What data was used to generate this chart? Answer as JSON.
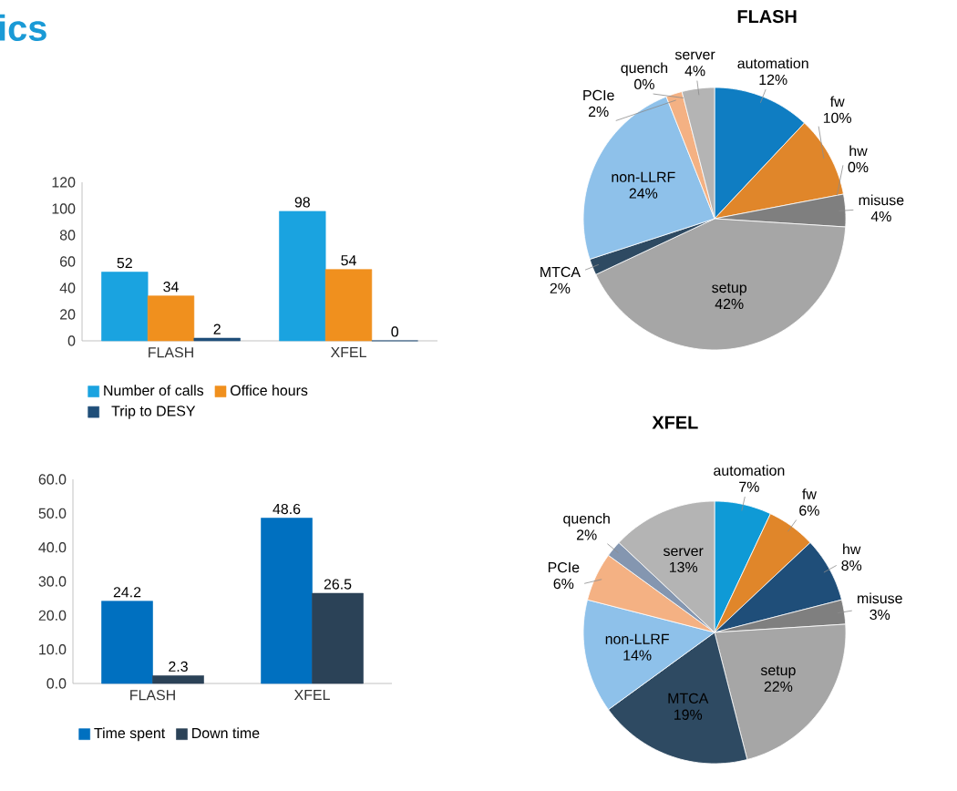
{
  "chart_data": [
    {
      "type": "bar",
      "title": "ics",
      "categories": [
        "FLASH",
        "XFEL"
      ],
      "series": [
        {
          "name": "Number of calls",
          "color": "#1aa3e0",
          "values": [
            52,
            98
          ]
        },
        {
          "name": "Office hours",
          "color": "#f0901e",
          "values": [
            34,
            54
          ]
        },
        {
          "name": "Trip to DESY",
          "color": "#1f4e79",
          "values": [
            2,
            0
          ]
        }
      ],
      "ylim": [
        0,
        120
      ],
      "yticks": [
        0,
        20,
        40,
        60,
        80,
        100,
        120
      ],
      "data_labels": true,
      "legend": "bottom"
    },
    {
      "type": "bar",
      "categories": [
        "FLASH",
        "XFEL"
      ],
      "series": [
        {
          "name": "Time spent",
          "color": "#0070c0",
          "values": [
            24.2,
            48.6
          ]
        },
        {
          "name": "Down time",
          "color": "#2b4257",
          "values": [
            2.3,
            26.5
          ]
        }
      ],
      "ylim": [
        0,
        60
      ],
      "yticks": [
        {
          "value": 0,
          "label": "0.0"
        },
        {
          "value": 10,
          "label": "10.0"
        },
        {
          "value": 20,
          "label": "20.0"
        },
        {
          "value": 30,
          "label": "30.0"
        },
        {
          "value": 40,
          "label": "40.0"
        },
        {
          "value": 50,
          "label": "50.0"
        },
        {
          "value": 60,
          "label": "60.0"
        }
      ],
      "data_labels": true,
      "legend": "bottom"
    },
    {
      "type": "pie",
      "title": "FLASH",
      "categories": [
        "automation",
        "fw",
        "hw",
        "misuse",
        "setup",
        "MTCA",
        "non-LLRF",
        "PCIe",
        "quench",
        "server"
      ],
      "values": [
        12,
        10,
        0,
        4,
        42,
        2,
        24,
        2,
        0,
        4
      ],
      "value_labels": [
        "12%",
        "10%",
        "0%",
        "4%",
        "42%",
        "2%",
        "24%",
        "2%",
        "0%",
        "4%"
      ],
      "colors": [
        "#0f7dc2",
        "#e0862a",
        "#1f4e79",
        "#7f7f7f",
        "#a6a6a6",
        "#2e4a62",
        "#8ec1ea",
        "#f4b183",
        "#8496b0",
        "#b4b4b4"
      ]
    },
    {
      "type": "pie",
      "title": "XFEL",
      "categories": [
        "automation",
        "fw",
        "hw",
        "misuse",
        "setup",
        "MTCA",
        "non-LLRF",
        "PCIe",
        "quench",
        "server"
      ],
      "values": [
        7,
        6,
        8,
        3,
        22,
        19,
        14,
        6,
        2,
        13
      ],
      "value_labels": [
        "7%",
        "6%",
        "8%",
        "3%",
        "22%",
        "19%",
        "14%",
        "6%",
        "2%",
        "13%"
      ],
      "colors": [
        "#0f9ad6",
        "#e0862a",
        "#1f4e79",
        "#7f7f7f",
        "#a6a6a6",
        "#2e4a62",
        "#8ec1ea",
        "#f4b183",
        "#8496b0",
        "#b4b4b4"
      ]
    }
  ]
}
